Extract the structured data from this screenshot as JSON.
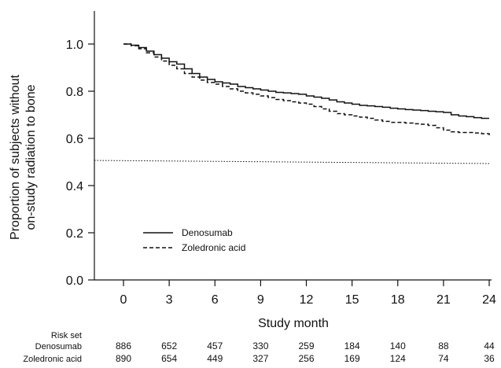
{
  "chart_data": {
    "type": "line",
    "title": "",
    "xlabel": "Study month",
    "ylabel_lines": [
      "Proportion of subjects without",
      "on-study radiation to bone"
    ],
    "xlim": [
      -2,
      24.2
    ],
    "ylim": [
      0,
      1.12
    ],
    "x_ticks": [
      "0",
      "3",
      "6",
      "9",
      "12",
      "15",
      "18",
      "21",
      "24"
    ],
    "y_ticks": [
      "0.0",
      "0.2",
      "0.4",
      "0.6",
      "0.8",
      "1.0"
    ],
    "reference_line": {
      "y": 0.5,
      "style": "dotted"
    },
    "legend": {
      "position": "bottom-left"
    },
    "series": [
      {
        "name": "Denosumab",
        "style": "solid",
        "color": "#111111",
        "x": [
          0,
          0.5,
          1,
          1.5,
          2,
          2.5,
          3,
          3.5,
          4,
          4.5,
          5,
          5.5,
          6,
          6.5,
          7,
          7.5,
          8,
          8.5,
          9,
          9.5,
          10,
          10.5,
          11,
          11.5,
          12,
          12.5,
          13,
          13.5,
          14,
          14.5,
          15,
          15.5,
          16,
          16.5,
          17,
          17.5,
          18,
          18.5,
          19,
          19.5,
          20,
          20.5,
          21,
          21.5,
          22,
          22.5,
          23,
          23.5,
          24
        ],
        "values": [
          1.0,
          0.995,
          0.985,
          0.97,
          0.955,
          0.94,
          0.925,
          0.915,
          0.895,
          0.875,
          0.86,
          0.85,
          0.84,
          0.835,
          0.83,
          0.82,
          0.815,
          0.81,
          0.805,
          0.8,
          0.795,
          0.793,
          0.79,
          0.787,
          0.78,
          0.775,
          0.77,
          0.763,
          0.755,
          0.75,
          0.745,
          0.74,
          0.738,
          0.735,
          0.732,
          0.728,
          0.725,
          0.722,
          0.72,
          0.718,
          0.715,
          0.713,
          0.71,
          0.7,
          0.695,
          0.692,
          0.688,
          0.685,
          0.685
        ]
      },
      {
        "name": "Zoledronic acid",
        "style": "dashed",
        "color": "#111111",
        "x": [
          0,
          0.5,
          1,
          1.5,
          2,
          2.5,
          3,
          3.5,
          4,
          4.5,
          5,
          5.5,
          6,
          6.5,
          7,
          7.5,
          8,
          8.5,
          9,
          9.5,
          10,
          10.5,
          11,
          11.5,
          12,
          12.5,
          13,
          13.5,
          14,
          14.5,
          15,
          15.5,
          16,
          16.5,
          17,
          17.5,
          18,
          18.5,
          19,
          19.5,
          20,
          20.5,
          21,
          21.5,
          22,
          22.5,
          23,
          23.5,
          24
        ],
        "values": [
          1.0,
          0.993,
          0.98,
          0.963,
          0.945,
          0.928,
          0.91,
          0.895,
          0.875,
          0.86,
          0.847,
          0.837,
          0.83,
          0.82,
          0.81,
          0.8,
          0.793,
          0.787,
          0.78,
          0.773,
          0.765,
          0.76,
          0.755,
          0.75,
          0.745,
          0.735,
          0.725,
          0.715,
          0.705,
          0.7,
          0.695,
          0.69,
          0.685,
          0.678,
          0.672,
          0.668,
          0.668,
          0.665,
          0.662,
          0.66,
          0.655,
          0.645,
          0.635,
          0.628,
          0.625,
          0.625,
          0.623,
          0.62,
          0.612
        ]
      }
    ]
  },
  "risk_set": {
    "header": "Risk set",
    "rows": [
      {
        "label": "Denosumab",
        "values": [
          "886",
          "652",
          "457",
          "330",
          "259",
          "184",
          "140",
          "88",
          "44"
        ]
      },
      {
        "label": "Zoledronic acid",
        "values": [
          "890",
          "654",
          "449",
          "327",
          "256",
          "169",
          "124",
          "74",
          "36"
        ]
      }
    ]
  }
}
